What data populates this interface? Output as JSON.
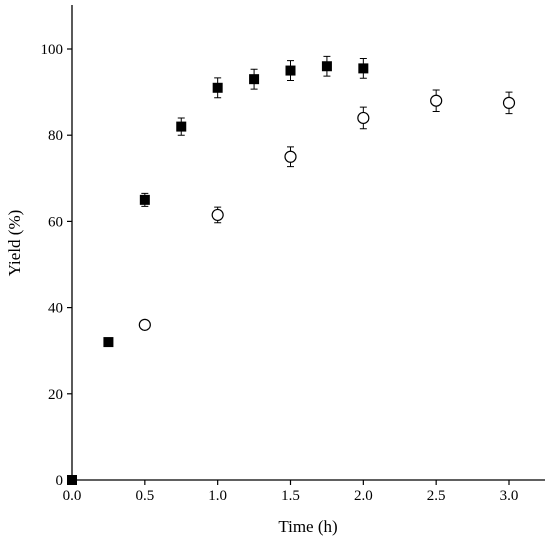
{
  "chart_data": {
    "type": "scatter",
    "title": "",
    "xlabel": "Time (h)",
    "ylabel": "Yield (%)",
    "xlim": [
      0,
      3.25
    ],
    "ylim": [
      0,
      110
    ],
    "xticks": [
      "0.0",
      "0.5",
      "1.0",
      "1.5",
      "2.0",
      "2.5",
      "3.0"
    ],
    "yticks": [
      "0",
      "20",
      "40",
      "60",
      "80",
      "100"
    ],
    "grid": false,
    "legend": "none",
    "series": [
      {
        "marker": "filled-square",
        "color": "#000000",
        "x": [
          0,
          0.25,
          0.5,
          0.75,
          1.0,
          1.25,
          1.5,
          1.75,
          2.0
        ],
        "y": [
          0,
          32,
          65,
          82,
          91,
          93,
          95,
          96,
          95.5
        ],
        "err": [
          0,
          0,
          1.5,
          2,
          2.3,
          2.3,
          2.3,
          2.3,
          2.3
        ]
      },
      {
        "marker": "open-circle",
        "color": "#000000",
        "x": [
          0.5,
          1.0,
          1.5,
          2.0,
          2.5,
          3.0
        ],
        "y": [
          36,
          61.5,
          75,
          84,
          88,
          87.5
        ],
        "err": [
          0,
          1.8,
          2.3,
          2.5,
          2.5,
          2.5
        ]
      }
    ]
  }
}
